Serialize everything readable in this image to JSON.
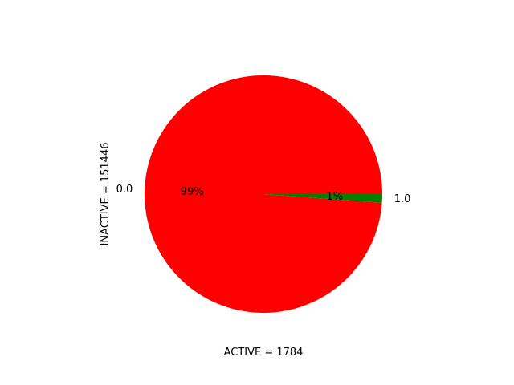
{
  "chart_data": {
    "type": "pie",
    "categories": [
      "0.0",
      "1.0"
    ],
    "values": [
      151446,
      1784
    ],
    "percent_labels": [
      "99%",
      "1%"
    ],
    "colors": [
      "#ff0000",
      "#008000"
    ],
    "xlabel": "ACTIVE = 1784",
    "ylabel": "INACTIVE = 151446",
    "legend": false
  }
}
